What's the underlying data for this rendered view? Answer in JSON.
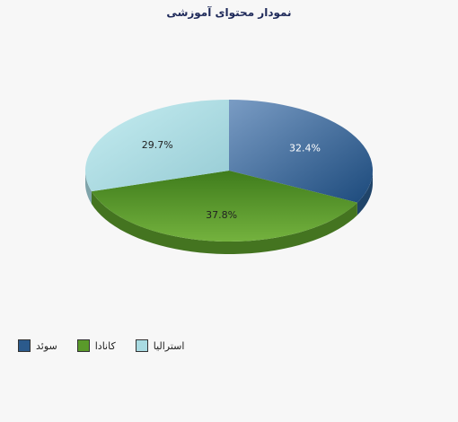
{
  "chart_data": {
    "type": "pie",
    "title": "نمودار محتوای آموزشی",
    "slices": [
      {
        "label": "سوئد",
        "value": 32.4,
        "value_label": "32.4%",
        "color": "#2b5a8c",
        "label_color": "#ffffff"
      },
      {
        "label": "کانادا",
        "value": 37.8,
        "value_label": "37.8%",
        "color": "#5a9a2a",
        "label_color": "#222222"
      },
      {
        "label": "استرالیا",
        "value": 29.7,
        "value_label": "29.7%",
        "color": "#a9dbe2",
        "label_color": "#222222"
      }
    ],
    "legend_position": "bottom-left",
    "style": "3d"
  }
}
